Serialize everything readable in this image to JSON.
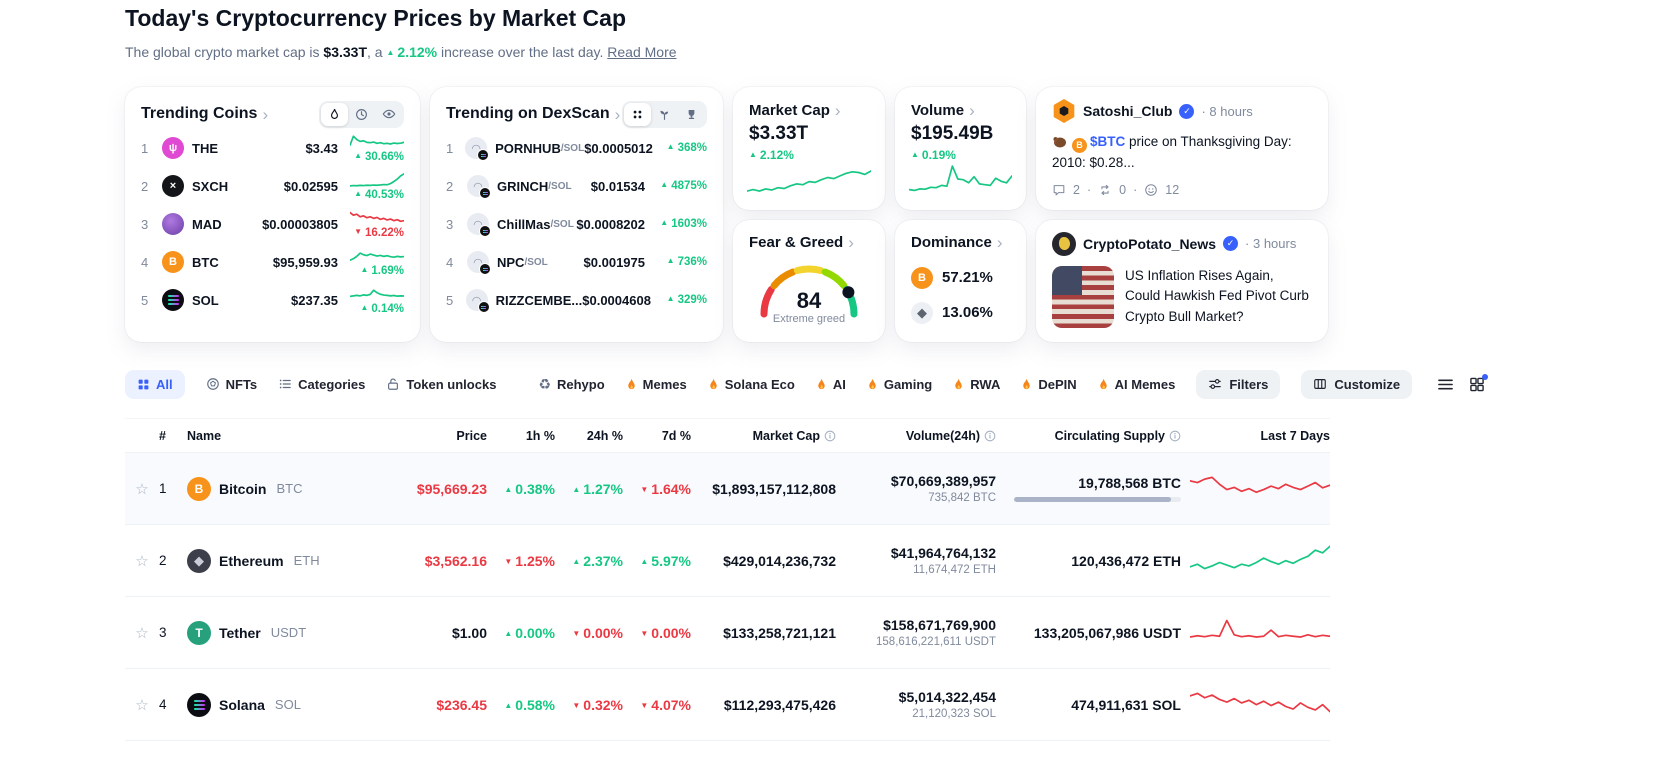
{
  "colors": {
    "green": "#16c784",
    "red": "#ea3943",
    "blue": "#3861fb",
    "dark": "#0d1421",
    "gray": "#616e85",
    "row_highlight": "#f8fafd",
    "gauge": [
      "#ea3943",
      "#ea8c00",
      "#f3d42f",
      "#93d900",
      "#16c784"
    ]
  },
  "sep": "·",
  "page": {
    "title": "Today's Cryptocurrency Prices by Market Cap",
    "subtitle_prefix": "The global crypto market cap is ",
    "market_cap": "$3.33T",
    "subtitle_mid": ", a ",
    "change": "2.12%",
    "subtitle_suffix": " increase over the last day. ",
    "read_more": "Read More"
  },
  "trending": {
    "title": "Trending Coins",
    "icons": [
      "flame-icon",
      "clock-icon",
      "eye-icon"
    ],
    "rows": [
      {
        "rank": "1",
        "sym": "THE",
        "price": "$3.43",
        "pct": "30.66%",
        "dir": "up",
        "spark": "the"
      },
      {
        "rank": "2",
        "sym": "SXCH",
        "price": "$0.02595",
        "pct": "40.53%",
        "dir": "up",
        "spark": "sxch"
      },
      {
        "rank": "3",
        "sym": "MAD",
        "price": "$0.00003805",
        "pct": "16.22%",
        "dir": "down",
        "spark": "mad"
      },
      {
        "rank": "4",
        "sym": "BTC",
        "price": "$95,959.93",
        "pct": "1.69%",
        "dir": "up",
        "spark": "btc"
      },
      {
        "rank": "5",
        "sym": "SOL",
        "price": "$237.35",
        "pct": "0.14%",
        "dir": "up",
        "spark": "sol"
      }
    ]
  },
  "dex": {
    "title": "Trending on DexScan",
    "icons": [
      "dex-pairs-icon",
      "seedling-icon",
      "trophy-icon"
    ],
    "rows": [
      {
        "rank": "1",
        "sym": "PORNHUB",
        "pair": "/SOL",
        "price": "$0.0005012",
        "pct": "368%",
        "dir": "up"
      },
      {
        "rank": "2",
        "sym": "GRINCH",
        "pair": "/SOL",
        "price": "$0.01534",
        "pct": "4875%",
        "dir": "up"
      },
      {
        "rank": "3",
        "sym": "ChillMas",
        "pair": "/SOL",
        "price": "$0.0008202",
        "pct": "1603%",
        "dir": "up"
      },
      {
        "rank": "4",
        "sym": "NPC",
        "pair": "/SOL",
        "price": "$0.001975",
        "pct": "736%",
        "dir": "up"
      },
      {
        "rank": "5",
        "sym": "RIZZCEMBE...",
        "pair": "",
        "price": "$0.0004608",
        "pct": "329%",
        "dir": "up"
      }
    ]
  },
  "stats": {
    "mcap": {
      "title": "Market Cap",
      "value": "$3.33T",
      "pct": "2.12%",
      "dir": "up",
      "spark": "market_cap"
    },
    "vol": {
      "title": "Volume",
      "value": "$195.49B",
      "pct": "0.19%",
      "dir": "up",
      "spark": "volume"
    }
  },
  "fear_greed": {
    "title": "Fear & Greed",
    "value": "84",
    "label": "Extreme greed"
  },
  "dominance": {
    "title": "Dominance",
    "btc": "57.21%",
    "eth": "13.06%"
  },
  "tweet": {
    "name": "Satoshi_Club",
    "time": "· 8 hours",
    "link": "$BTC",
    "text": " price on Thanksgiving Day: 2010: $0.28...",
    "comments": "2",
    "retweets": "0",
    "reactions": "12"
  },
  "news": {
    "name": "CryptoPotato_News",
    "time": "· 3 hours",
    "headline": "US Inflation Rises Again, Could Hawkish Fed Pivot Curb Crypto Bull Market?"
  },
  "filterbar": {
    "tabs": [
      "All",
      "NFTs",
      "Categories",
      "Token unlocks"
    ],
    "tags": [
      "Rehypo",
      "Memes",
      "Solana Eco",
      "AI",
      "Gaming",
      "RWA",
      "DePIN",
      "AI Memes"
    ],
    "filters": "Filters",
    "customize": "Customize"
  },
  "table": {
    "headers": [
      "#",
      "Name",
      "Price",
      "1h %",
      "24h %",
      "7d %",
      "Market Cap",
      "Volume(24h)",
      "Circulating Supply",
      "Last 7 Days"
    ],
    "rows": [
      {
        "rank": "1",
        "name": "Bitcoin",
        "sym": "BTC",
        "price": "$95,669.23",
        "price_class": "red",
        "h1": "0.38%",
        "h1_dir": "up",
        "h24": "1.27%",
        "h24_dir": "up",
        "d7": "1.64%",
        "d7_dir": "down",
        "mcap": "$1,893,157,112,808",
        "vol": "$70,669,389,957",
        "vol_sub": "735,842 BTC",
        "supply": "19,788,568 BTC",
        "supply_bar_pct": "94",
        "spark": "btc_7d",
        "row_class": "highlight"
      },
      {
        "rank": "2",
        "name": "Ethereum",
        "sym": "ETH",
        "price": "$3,562.16",
        "price_class": "red",
        "h1": "1.25%",
        "h1_dir": "down",
        "h24": "2.37%",
        "h24_dir": "up",
        "d7": "5.97%",
        "d7_dir": "up",
        "mcap": "$429,014,236,732",
        "vol": "$41,964,764,132",
        "vol_sub": "11,674,472 ETH",
        "supply": "120,436,472 ETH",
        "spark": "eth_7d",
        "row_class": ""
      },
      {
        "rank": "3",
        "name": "Tether",
        "sym": "USDT",
        "price": "$1.00",
        "price_class": "dark",
        "h1": "0.00%",
        "h1_dir": "up",
        "h24": "0.00%",
        "h24_dir": "down",
        "d7": "0.00%",
        "d7_dir": "down",
        "mcap": "$133,258,721,121",
        "vol": "$158,671,769,900",
        "vol_sub": "158,616,221,611 USDT",
        "supply": "133,205,067,986 USDT",
        "spark": "usdt_7d",
        "row_class": ""
      },
      {
        "rank": "4",
        "name": "Solana",
        "sym": "SOL",
        "price": "$236.45",
        "price_class": "red",
        "h1": "0.58%",
        "h1_dir": "up",
        "h24": "0.32%",
        "h24_dir": "down",
        "d7": "4.07%",
        "d7_dir": "down",
        "mcap": "$112,293,475,426",
        "vol": "$5,014,322,454",
        "vol_sub": "21,120,323 SOL",
        "supply": "474,911,631 SOL",
        "spark": "sol_7d",
        "row_class": ""
      }
    ]
  },
  "sparks": {
    "the": {
      "color": "#16c784",
      "points": [
        35,
        90,
        70,
        58,
        62,
        52,
        50,
        54,
        46,
        50,
        44,
        46,
        42,
        48,
        45,
        47,
        52
      ]
    },
    "sxch": {
      "color": "#16c784",
      "points": [
        18,
        20,
        19,
        21,
        20,
        22,
        21,
        23,
        22,
        24,
        26,
        25,
        32,
        45,
        60,
        80,
        92
      ]
    },
    "mad": {
      "color": "#ea3943",
      "points": [
        88,
        72,
        78,
        62,
        68,
        56,
        62,
        52,
        58,
        46,
        52,
        42,
        48,
        38,
        44,
        34,
        38
      ]
    },
    "btc": {
      "color": "#16c784",
      "points": [
        28,
        38,
        52,
        72,
        62,
        57,
        66,
        60,
        54,
        58,
        52,
        56,
        50,
        47,
        52,
        49,
        51
      ]
    },
    "sol": {
      "color": "#16c784",
      "points": [
        40,
        43,
        46,
        43,
        49,
        46,
        52,
        78,
        62,
        53,
        48,
        46,
        43,
        45,
        41,
        43,
        42
      ]
    },
    "market_cap": {
      "color": "#16c784",
      "points": [
        22,
        26,
        22,
        28,
        25,
        31,
        29,
        36,
        41,
        39,
        47,
        45,
        52,
        58,
        55,
        62,
        69,
        73,
        71,
        66,
        75
      ]
    },
    "volume": {
      "color": "#16c784",
      "points": [
        26,
        24,
        28,
        27,
        32,
        31,
        37,
        35,
        88,
        54,
        52,
        44,
        60,
        41,
        39,
        37,
        56,
        48,
        44,
        62
      ]
    },
    "btc_7d": {
      "color": "#ea3943",
      "points": [
        70,
        66,
        74,
        78,
        62,
        50,
        55,
        46,
        52,
        44,
        50,
        58,
        52,
        62,
        55,
        50,
        58,
        66,
        54,
        60
      ]
    },
    "eth_7d": {
      "color": "#16c784",
      "points": [
        38,
        44,
        34,
        40,
        48,
        42,
        36,
        44,
        40,
        48,
        58,
        50,
        44,
        52,
        46,
        55,
        62,
        76,
        70,
        85
      ]
    },
    "usdt_7d": {
      "color": "#ea3943",
      "points": [
        42,
        45,
        43,
        46,
        44,
        80,
        47,
        43,
        45,
        42,
        44,
        58,
        43,
        46,
        44,
        42,
        47,
        43,
        46,
        44
      ]
    },
    "sol_7d": {
      "color": "#ea3943",
      "points": [
        72,
        78,
        68,
        74,
        64,
        58,
        66,
        56,
        62,
        52,
        60,
        50,
        58,
        48,
        42,
        56,
        46,
        40,
        52,
        36
      ]
    }
  }
}
